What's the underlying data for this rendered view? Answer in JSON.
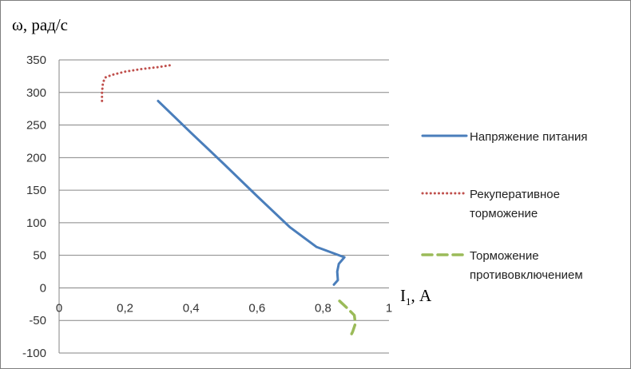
{
  "chart_data": {
    "type": "line",
    "y_title": "ω, рад/с",
    "x_title_main": "I",
    "x_title_sub": "1",
    "x_title_rest": ", А",
    "xlim": [
      0,
      1
    ],
    "ylim": [
      -100,
      350
    ],
    "x_ticks": [
      {
        "value": 0,
        "label": "0"
      },
      {
        "value": 0.2,
        "label": "0,2"
      },
      {
        "value": 0.4,
        "label": "0,4"
      },
      {
        "value": 0.6,
        "label": "0,6"
      },
      {
        "value": 0.8,
        "label": "0,8"
      },
      {
        "value": 1,
        "label": "1"
      }
    ],
    "y_ticks": [
      {
        "value": 350,
        "label": "350"
      },
      {
        "value": 300,
        "label": "300"
      },
      {
        "value": 250,
        "label": "250"
      },
      {
        "value": 200,
        "label": "200"
      },
      {
        "value": 150,
        "label": "150"
      },
      {
        "value": 100,
        "label": "100"
      },
      {
        "value": 50,
        "label": "50"
      },
      {
        "value": 0,
        "label": "0"
      },
      {
        "value": -50,
        "label": "-50"
      },
      {
        "value": -100,
        "label": "-100"
      }
    ],
    "grid": true,
    "legend_position": "right",
    "series": [
      {
        "name_lines": [
          "Напряжение питания"
        ],
        "color": "#4a7ebb",
        "style": "solid",
        "points": [
          [
            0.3,
            287
          ],
          [
            0.4,
            238
          ],
          [
            0.5,
            190
          ],
          [
            0.6,
            141
          ],
          [
            0.7,
            93
          ],
          [
            0.78,
            63
          ],
          [
            0.865,
            47
          ],
          [
            0.848,
            37
          ],
          [
            0.843,
            25
          ],
          [
            0.845,
            12
          ],
          [
            0.833,
            5
          ]
        ]
      },
      {
        "name_lines": [
          "Рекуперативное",
          "торможение"
        ],
        "color": "#c0504d",
        "style": "dotted",
        "points": [
          [
            0.13,
            287
          ],
          [
            0.13,
            300
          ],
          [
            0.133,
            315
          ],
          [
            0.14,
            323
          ],
          [
            0.16,
            327
          ],
          [
            0.2,
            332
          ],
          [
            0.25,
            336
          ],
          [
            0.3,
            339
          ],
          [
            0.34,
            342
          ]
        ]
      },
      {
        "name_lines": [
          "Торможение",
          "противовключением"
        ],
        "color": "#9bbb59",
        "style": "dashed",
        "points": [
          [
            0.85,
            -20
          ],
          [
            0.875,
            -32
          ],
          [
            0.895,
            -42
          ],
          [
            0.898,
            -55
          ],
          [
            0.89,
            -67
          ],
          [
            0.88,
            -78
          ]
        ]
      }
    ]
  }
}
